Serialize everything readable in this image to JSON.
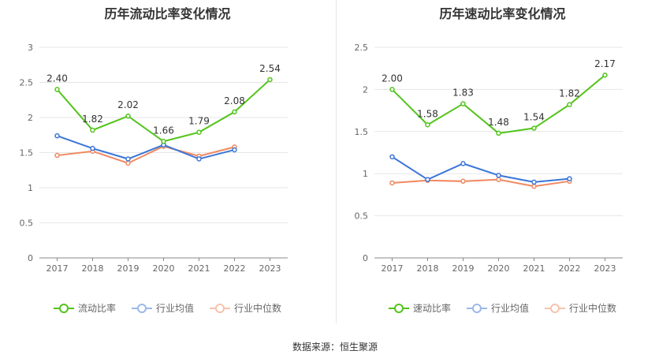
{
  "charts": [
    {
      "id": "left",
      "title": "历年流动比率变化情况",
      "legend": [
        "流动比率",
        "行业均值",
        "行业中位数"
      ],
      "chart_data": {
        "type": "line",
        "title": "历年流动比率变化情况",
        "categories": [
          "2017",
          "2018",
          "2019",
          "2020",
          "2021",
          "2022",
          "2023"
        ],
        "yticks": [
          "0",
          "0.5",
          "1",
          "1.5",
          "2",
          "2.5",
          "3"
        ],
        "ylim": [
          0,
          3
        ],
        "series": [
          {
            "name": "流动比率",
            "color": "#52c41a",
            "values": [
              2.4,
              1.82,
              2.02,
              1.66,
              1.79,
              2.08,
              2.54
            ],
            "labels": [
              "2.40",
              "1.82",
              "2.02",
              "1.66",
              "1.79",
              "2.08",
              "2.54"
            ]
          },
          {
            "name": "行业均值",
            "color": "#3a75d8",
            "values": [
              1.74,
              1.56,
              1.41,
              1.61,
              1.41,
              1.54,
              null
            ]
          },
          {
            "name": "行业中位数",
            "color": "#f08860",
            "values": [
              1.46,
              1.52,
              1.35,
              1.59,
              1.45,
              1.58,
              null
            ]
          }
        ]
      }
    },
    {
      "id": "right",
      "title": "历年速动比率变化情况",
      "legend": [
        "速动比率",
        "行业均值",
        "行业中位数"
      ],
      "chart_data": {
        "type": "line",
        "title": "历年速动比率变化情况",
        "categories": [
          "2017",
          "2018",
          "2019",
          "2020",
          "2021",
          "2022",
          "2023"
        ],
        "yticks": [
          "0",
          "0.5",
          "1",
          "1.5",
          "2",
          "2.5"
        ],
        "ylim": [
          0,
          2.5
        ],
        "series": [
          {
            "name": "速动比率",
            "color": "#52c41a",
            "values": [
              2.0,
              1.58,
              1.83,
              1.48,
              1.54,
              1.82,
              2.17
            ],
            "labels": [
              "2.00",
              "1.58",
              "1.83",
              "1.48",
              "1.54",
              "1.82",
              "2.17"
            ]
          },
          {
            "name": "行业均值",
            "color": "#3a75d8",
            "values": [
              1.2,
              0.93,
              1.12,
              0.98,
              0.9,
              0.94,
              null
            ]
          },
          {
            "name": "行业中位数",
            "color": "#f08860",
            "values": [
              0.89,
              0.92,
              0.91,
              0.93,
              0.85,
              0.91,
              null
            ]
          }
        ]
      }
    }
  ],
  "source": "数据来源：恒生聚源"
}
